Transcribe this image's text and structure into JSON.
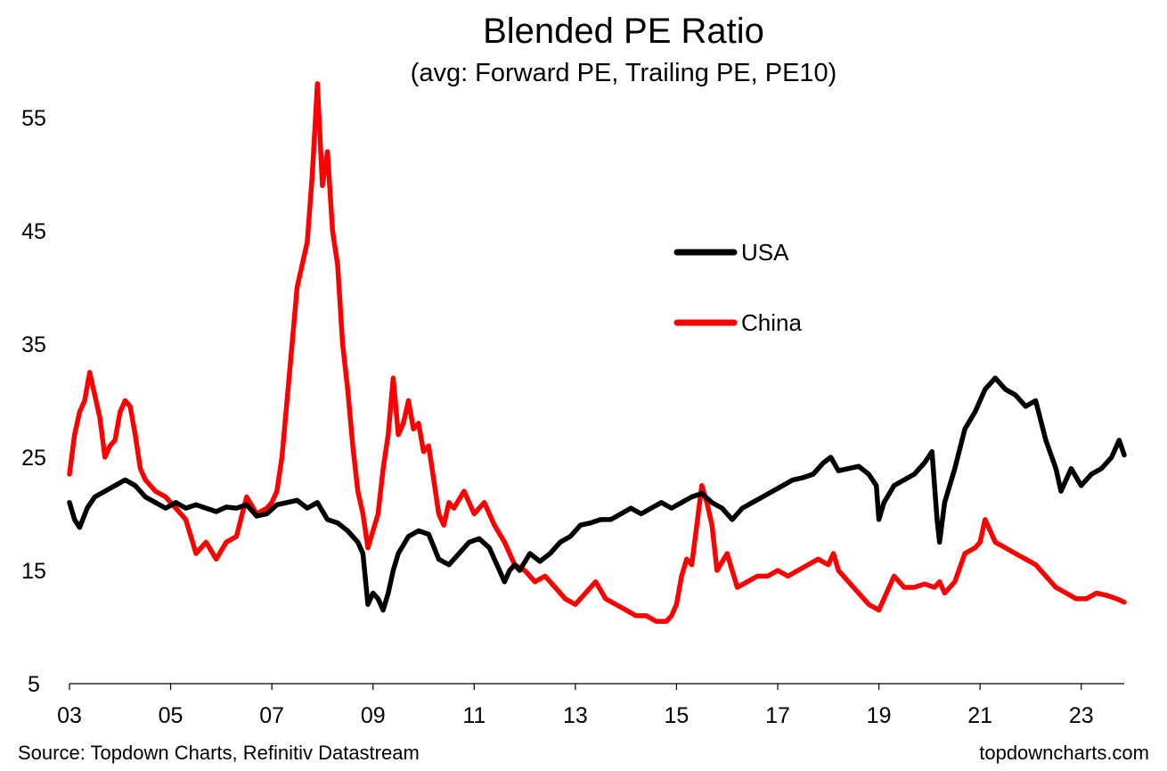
{
  "chart_data": {
    "type": "line",
    "title": "Blended PE Ratio",
    "subtitle": "(avg: Forward PE, Trailing PE, PE10)",
    "xlabel": "",
    "ylabel": "",
    "xlim": [
      2003.0,
      2023.85
    ],
    "ylim": [
      5,
      58
    ],
    "yticks": [
      5,
      15,
      25,
      35,
      45,
      55
    ],
    "xticks": [
      "03",
      "05",
      "07",
      "09",
      "11",
      "13",
      "15",
      "17",
      "19",
      "21",
      "23"
    ],
    "xtick_values": [
      2003,
      2005,
      2007,
      2009,
      2011,
      2013,
      2015,
      2017,
      2019,
      2021,
      2023
    ],
    "grid": false,
    "legend_position": "upper-right",
    "series": [
      {
        "name": "USA",
        "color": "#000000",
        "x": [
          2003.0,
          2003.1,
          2003.2,
          2003.35,
          2003.5,
          2003.7,
          2003.9,
          2004.1,
          2004.3,
          2004.5,
          2004.7,
          2004.9,
          2005.1,
          2005.3,
          2005.5,
          2005.7,
          2005.9,
          2006.1,
          2006.3,
          2006.5,
          2006.7,
          2006.9,
          2007.1,
          2007.3,
          2007.5,
          2007.7,
          2007.9,
          2008.1,
          2008.3,
          2008.5,
          2008.7,
          2008.8,
          2008.9,
          2009.0,
          2009.1,
          2009.2,
          2009.3,
          2009.4,
          2009.5,
          2009.7,
          2009.9,
          2010.1,
          2010.3,
          2010.5,
          2010.7,
          2010.9,
          2011.1,
          2011.3,
          2011.5,
          2011.6,
          2011.7,
          2011.8,
          2011.9,
          2012.1,
          2012.3,
          2012.5,
          2012.7,
          2012.9,
          2013.1,
          2013.3,
          2013.5,
          2013.7,
          2013.9,
          2014.1,
          2014.3,
          2014.5,
          2014.7,
          2014.9,
          2015.1,
          2015.3,
          2015.5,
          2015.7,
          2015.9,
          2016.1,
          2016.3,
          2016.5,
          2016.7,
          2016.9,
          2017.1,
          2017.3,
          2017.5,
          2017.7,
          2017.9,
          2018.05,
          2018.2,
          2018.4,
          2018.6,
          2018.8,
          2018.95,
          2019.0,
          2019.1,
          2019.3,
          2019.5,
          2019.7,
          2019.9,
          2020.05,
          2020.15,
          2020.2,
          2020.3,
          2020.5,
          2020.7,
          2020.9,
          2021.1,
          2021.3,
          2021.5,
          2021.7,
          2021.9,
          2022.1,
          2022.3,
          2022.5,
          2022.6,
          2022.8,
          2023.0,
          2023.2,
          2023.4,
          2023.6,
          2023.75,
          2023.85
        ],
        "y": [
          21.0,
          19.5,
          18.8,
          20.5,
          21.5,
          22.0,
          22.5,
          23.0,
          22.5,
          21.5,
          21.0,
          20.5,
          21.0,
          20.5,
          20.8,
          20.5,
          20.2,
          20.6,
          20.5,
          20.8,
          19.8,
          20.0,
          20.8,
          21.0,
          21.2,
          20.5,
          21.0,
          19.5,
          19.2,
          18.5,
          17.5,
          16.5,
          12.0,
          13.0,
          12.5,
          11.5,
          13.0,
          15.0,
          16.5,
          18.0,
          18.5,
          18.2,
          16.0,
          15.5,
          16.5,
          17.5,
          17.8,
          17.0,
          15.0,
          14.0,
          15.0,
          15.5,
          15.0,
          16.5,
          15.8,
          16.5,
          17.5,
          18.0,
          19.0,
          19.2,
          19.5,
          19.5,
          20.0,
          20.5,
          20.0,
          20.5,
          21.0,
          20.5,
          21.0,
          21.5,
          21.8,
          21.0,
          20.5,
          19.5,
          20.5,
          21.0,
          21.5,
          22.0,
          22.5,
          23.0,
          23.2,
          23.5,
          24.5,
          25.0,
          23.8,
          24.0,
          24.2,
          23.5,
          22.5,
          19.5,
          21.0,
          22.5,
          23.0,
          23.5,
          24.5,
          25.5,
          19.5,
          17.5,
          21.0,
          24.0,
          27.5,
          29.0,
          31.0,
          32.0,
          31.0,
          30.5,
          29.5,
          30.0,
          26.5,
          24.0,
          22.0,
          24.0,
          22.5,
          23.5,
          24.0,
          25.0,
          26.5,
          25.2
        ]
      },
      {
        "name": "China",
        "color": "#ff0000",
        "x": [
          2003.0,
          2003.1,
          2003.2,
          2003.3,
          2003.4,
          2003.5,
          2003.6,
          2003.7,
          2003.8,
          2003.9,
          2004.0,
          2004.1,
          2004.2,
          2004.3,
          2004.4,
          2004.5,
          2004.7,
          2004.9,
          2005.1,
          2005.3,
          2005.5,
          2005.7,
          2005.9,
          2006.1,
          2006.3,
          2006.5,
          2006.7,
          2006.9,
          2007.0,
          2007.1,
          2007.2,
          2007.3,
          2007.4,
          2007.5,
          2007.6,
          2007.7,
          2007.8,
          2007.9,
          2008.0,
          2008.1,
          2008.2,
          2008.3,
          2008.4,
          2008.5,
          2008.6,
          2008.7,
          2008.8,
          2008.9,
          2009.0,
          2009.1,
          2009.2,
          2009.3,
          2009.4,
          2009.5,
          2009.6,
          2009.7,
          2009.8,
          2009.9,
          2010.0,
          2010.1,
          2010.2,
          2010.3,
          2010.4,
          2010.5,
          2010.6,
          2010.8,
          2011.0,
          2011.2,
          2011.4,
          2011.6,
          2011.8,
          2012.0,
          2012.2,
          2012.4,
          2012.6,
          2012.8,
          2013.0,
          2013.2,
          2013.4,
          2013.6,
          2013.8,
          2014.0,
          2014.2,
          2014.4,
          2014.6,
          2014.8,
          2014.9,
          2015.0,
          2015.1,
          2015.2,
          2015.3,
          2015.4,
          2015.5,
          2015.6,
          2015.7,
          2015.8,
          2016.0,
          2016.2,
          2016.4,
          2016.6,
          2016.8,
          2017.0,
          2017.2,
          2017.4,
          2017.6,
          2017.8,
          2018.0,
          2018.1,
          2018.2,
          2018.4,
          2018.6,
          2018.8,
          2019.0,
          2019.1,
          2019.3,
          2019.5,
          2019.7,
          2019.9,
          2020.1,
          2020.2,
          2020.3,
          2020.5,
          2020.7,
          2020.9,
          2021.0,
          2021.1,
          2021.3,
          2021.5,
          2021.7,
          2021.9,
          2022.1,
          2022.3,
          2022.5,
          2022.7,
          2022.9,
          2023.1,
          2023.3,
          2023.5,
          2023.7,
          2023.85
        ],
        "y": [
          23.5,
          27.0,
          29.0,
          30.0,
          32.5,
          30.5,
          28.5,
          25.0,
          26.0,
          26.5,
          29.0,
          30.0,
          29.5,
          27.0,
          24.0,
          23.0,
          22.0,
          21.5,
          20.5,
          19.5,
          16.5,
          17.5,
          16.0,
          17.5,
          18.0,
          21.5,
          20.0,
          20.5,
          21.0,
          22.0,
          25.0,
          30.0,
          35.0,
          40.0,
          42.0,
          44.0,
          50.0,
          58.0,
          49.0,
          52.0,
          45.0,
          42.0,
          35.0,
          31.0,
          26.0,
          22.0,
          20.0,
          17.0,
          18.5,
          20.0,
          24.0,
          27.0,
          32.0,
          27.0,
          28.0,
          30.0,
          27.5,
          28.0,
          25.5,
          26.0,
          23.0,
          20.0,
          19.0,
          21.0,
          20.5,
          22.0,
          20.0,
          21.0,
          19.0,
          17.5,
          15.5,
          15.0,
          14.0,
          14.5,
          13.5,
          12.5,
          12.0,
          13.0,
          14.0,
          12.5,
          12.0,
          11.5,
          11.0,
          11.0,
          10.5,
          10.5,
          11.0,
          12.0,
          14.5,
          16.0,
          15.5,
          19.0,
          22.5,
          21.0,
          19.0,
          15.0,
          16.5,
          13.5,
          14.0,
          14.5,
          14.5,
          15.0,
          14.5,
          15.0,
          15.5,
          16.0,
          15.5,
          16.5,
          15.0,
          14.0,
          13.0,
          12.0,
          11.5,
          12.5,
          14.5,
          13.5,
          13.5,
          13.8,
          13.5,
          14.0,
          13.0,
          14.0,
          16.5,
          17.0,
          17.5,
          19.5,
          17.5,
          17.0,
          16.5,
          16.0,
          15.5,
          14.5,
          13.5,
          13.0,
          12.5,
          12.5,
          13.0,
          12.8,
          12.5,
          12.2
        ]
      }
    ]
  },
  "footer": {
    "source": "Source: Topdown Charts, Refinitiv Datastream",
    "brand": "topdowncharts.com"
  }
}
